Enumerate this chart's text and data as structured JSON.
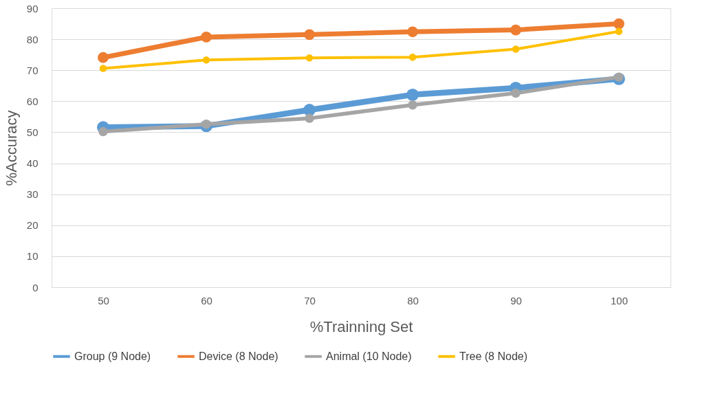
{
  "chart_data": {
    "type": "line",
    "xlabel": "%Trainning Set",
    "ylabel": "%Accuracy",
    "categories": [
      "50",
      "60",
      "70",
      "80",
      "90",
      "100"
    ],
    "ylim": [
      0,
      90
    ],
    "yticks": [
      0,
      10,
      20,
      30,
      40,
      50,
      60,
      70,
      80,
      90
    ],
    "grid": "y",
    "legend": "bottom",
    "marker": "circle",
    "line_style": "solid",
    "series": [
      {
        "name": "Group (9 Node)",
        "color": "#5b9bd5",
        "values": [
          51.6,
          52.0,
          57.2,
          62.1,
          64.3,
          67.2
        ]
      },
      {
        "name": "Device (8 Node)",
        "color": "#ed7d31",
        "values": [
          74.1,
          80.7,
          81.5,
          82.4,
          83.0,
          85.0
        ]
      },
      {
        "name": "Animal (10 Node)",
        "color": "#a5a5a5",
        "values": [
          50.2,
          52.6,
          54.5,
          58.8,
          62.6,
          67.8
        ]
      },
      {
        "name": "Tree (8 Node)",
        "color": "#ffc000",
        "values": [
          70.6,
          73.3,
          74.0,
          74.2,
          76.8,
          82.5
        ]
      }
    ]
  }
}
